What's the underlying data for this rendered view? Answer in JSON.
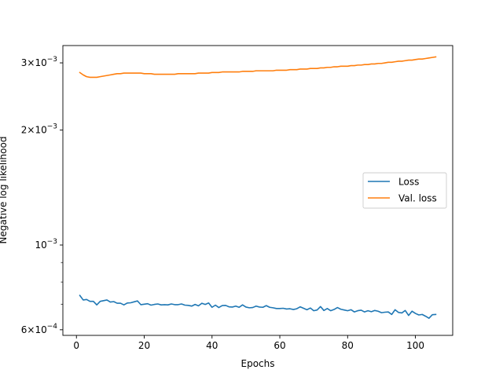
{
  "chart_data": {
    "type": "line",
    "title": "",
    "xlabel": "Epochs",
    "ylabel": "Negative log likelihood",
    "xlim": [
      -4,
      111
    ],
    "ylim": [
      0.00058,
      0.00333
    ],
    "yscale": "log",
    "grid": false,
    "legend_position": "center-right",
    "x_ticks": [
      0,
      20,
      40,
      60,
      80,
      100
    ],
    "x_tick_labels": [
      "0",
      "20",
      "40",
      "60",
      "80",
      "100"
    ],
    "y_ticks": [
      0.0006,
      0.001,
      0.002,
      0.003
    ],
    "y_tick_mantissa": [
      "6",
      "",
      "2",
      "3"
    ],
    "y_tick_base": [
      "10",
      "10",
      "10",
      "10"
    ],
    "y_tick_exponent": [
      "−4",
      "−3",
      "−3",
      "−3"
    ],
    "y_minor_ticks": [
      0.0007,
      0.0008,
      0.0009
    ],
    "series": [
      {
        "name": "Loss",
        "color": "#1f77b4",
        "x": [
          1,
          2,
          3,
          4,
          5,
          6,
          7,
          8,
          9,
          10,
          11,
          12,
          13,
          14,
          15,
          16,
          17,
          18,
          19,
          20,
          21,
          22,
          23,
          24,
          25,
          26,
          27,
          28,
          29,
          30,
          31,
          32,
          33,
          34,
          35,
          36,
          37,
          38,
          39,
          40,
          41,
          42,
          43,
          44,
          45,
          46,
          47,
          48,
          49,
          50,
          51,
          52,
          53,
          54,
          55,
          56,
          57,
          58,
          59,
          60,
          61,
          62,
          63,
          64,
          65,
          66,
          67,
          68,
          69,
          70,
          71,
          72,
          73,
          74,
          75,
          76,
          77,
          78,
          79,
          80,
          81,
          82,
          83,
          84,
          85,
          86,
          87,
          88,
          89,
          90,
          91,
          92,
          93,
          94,
          95,
          96,
          97,
          98,
          99,
          100,
          101,
          102,
          103,
          104,
          105,
          106
        ],
        "values": [
          0.000738,
          0.000718,
          0.00072,
          0.000712,
          0.000712,
          0.000697,
          0.000712,
          0.000715,
          0.000718,
          0.000709,
          0.000711,
          0.000704,
          0.000704,
          0.000697,
          0.000705,
          0.000706,
          0.00071,
          0.000714,
          0.000698,
          0.0007,
          0.000702,
          0.000696,
          0.000699,
          0.000701,
          0.000697,
          0.000698,
          0.000697,
          0.000701,
          0.000698,
          0.000698,
          0.000701,
          0.000696,
          0.000695,
          0.000692,
          0.000699,
          0.000693,
          0.000704,
          0.000699,
          0.000705,
          0.000687,
          0.000696,
          0.000686,
          0.000694,
          0.000695,
          0.000689,
          0.000688,
          0.000692,
          0.000687,
          0.000697,
          0.000688,
          0.000685,
          0.000686,
          0.000692,
          0.000688,
          0.000687,
          0.000694,
          0.000687,
          0.000685,
          0.000682,
          0.000682,
          0.000683,
          0.00068,
          0.000681,
          0.000678,
          0.000681,
          0.000689,
          0.000683,
          0.000677,
          0.000684,
          0.000673,
          0.000676,
          0.00069,
          0.000674,
          0.000682,
          0.000673,
          0.000678,
          0.000686,
          0.000679,
          0.000676,
          0.000673,
          0.000677,
          0.000668,
          0.000673,
          0.000675,
          0.000668,
          0.000673,
          0.000669,
          0.000674,
          0.000671,
          0.000665,
          0.000667,
          0.000668,
          0.000658,
          0.000677,
          0.000666,
          0.000664,
          0.000674,
          0.000654,
          0.000671,
          0.000662,
          0.000656,
          0.000658,
          0.000651,
          0.000643,
          0.000657,
          0.000658
        ]
      },
      {
        "name": "Val. loss",
        "color": "#ff7f0e",
        "x": [
          1,
          2,
          3,
          4,
          5,
          6,
          7,
          8,
          9,
          10,
          11,
          12,
          13,
          14,
          15,
          16,
          17,
          18,
          19,
          20,
          21,
          22,
          23,
          24,
          25,
          26,
          27,
          28,
          29,
          30,
          31,
          32,
          33,
          34,
          35,
          36,
          37,
          38,
          39,
          40,
          41,
          42,
          43,
          44,
          45,
          46,
          47,
          48,
          49,
          50,
          51,
          52,
          53,
          54,
          55,
          56,
          57,
          58,
          59,
          60,
          61,
          62,
          63,
          64,
          65,
          66,
          67,
          68,
          69,
          70,
          71,
          72,
          73,
          74,
          75,
          76,
          77,
          78,
          79,
          80,
          81,
          82,
          83,
          84,
          85,
          86,
          87,
          88,
          89,
          90,
          91,
          92,
          93,
          94,
          95,
          96,
          97,
          98,
          99,
          100,
          101,
          102,
          103,
          104,
          105,
          106
        ],
        "values": [
          0.00283,
          0.00279,
          0.00276,
          0.00275,
          0.00275,
          0.00275,
          0.00276,
          0.00277,
          0.00278,
          0.00279,
          0.0028,
          0.00281,
          0.00281,
          0.00282,
          0.00282,
          0.00282,
          0.00282,
          0.00282,
          0.00282,
          0.00281,
          0.00281,
          0.00281,
          0.0028,
          0.0028,
          0.0028,
          0.0028,
          0.0028,
          0.0028,
          0.0028,
          0.00281,
          0.00281,
          0.00281,
          0.00281,
          0.00281,
          0.00281,
          0.00282,
          0.00282,
          0.00282,
          0.00282,
          0.00283,
          0.00283,
          0.00283,
          0.00284,
          0.00284,
          0.00284,
          0.00284,
          0.00284,
          0.00284,
          0.00285,
          0.00285,
          0.00285,
          0.00285,
          0.00286,
          0.00286,
          0.00286,
          0.00286,
          0.00286,
          0.00286,
          0.00287,
          0.00287,
          0.00287,
          0.00287,
          0.00288,
          0.00288,
          0.00288,
          0.00289,
          0.00289,
          0.00289,
          0.0029,
          0.0029,
          0.0029,
          0.00291,
          0.00291,
          0.00292,
          0.00292,
          0.00293,
          0.00293,
          0.00294,
          0.00294,
          0.00294,
          0.00295,
          0.00295,
          0.00296,
          0.00296,
          0.00297,
          0.00297,
          0.00298,
          0.00298,
          0.00299,
          0.00299,
          0.003,
          0.00301,
          0.00301,
          0.00302,
          0.00303,
          0.00303,
          0.00304,
          0.00305,
          0.00305,
          0.00306,
          0.00307,
          0.00307,
          0.00308,
          0.00309,
          0.0031,
          0.00311
        ]
      }
    ]
  }
}
